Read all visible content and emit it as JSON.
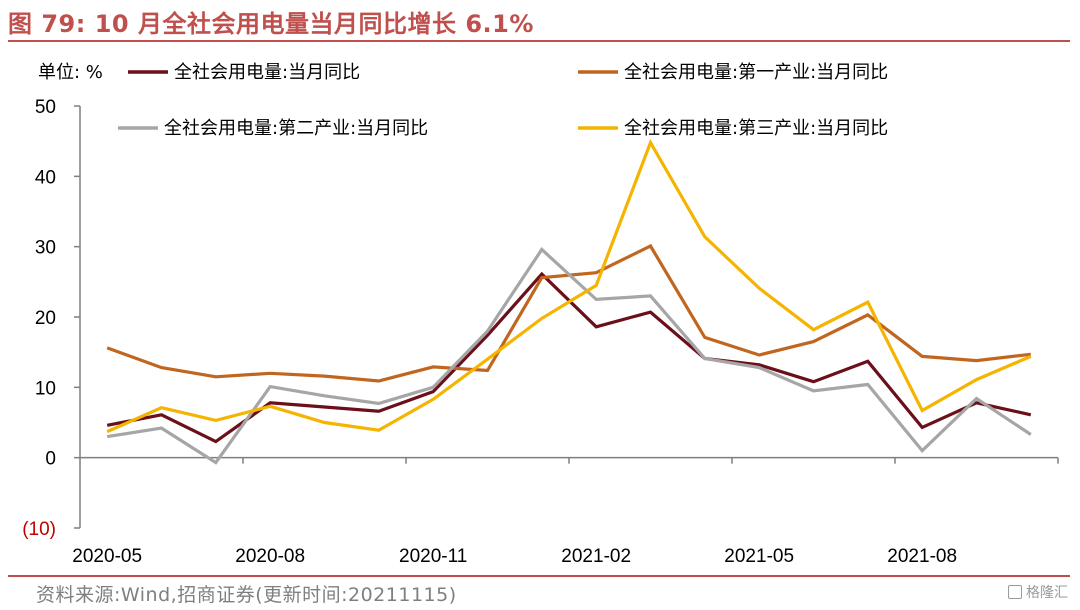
{
  "title": "图 79: 10 月全社会用电量当月同比增长 6.1%",
  "source": "资料来源:Wind,招商证券(更新时间:20211115)",
  "watermark": "格隆汇",
  "chart_data": {
    "type": "line",
    "unit_label": "单位: %",
    "x": [
      "2020-05",
      "2020-06",
      "2020-07",
      "2020-08",
      "2020-09",
      "2020-10",
      "2020-11",
      "2020-12",
      "2021-01",
      "2021-02",
      "2021-03",
      "2021-04",
      "2021-05",
      "2021-06",
      "2021-07",
      "2021-08",
      "2021-09",
      "2021-10"
    ],
    "x_tick_labels": [
      "2020-05",
      "2020-08",
      "2020-11",
      "2021-02",
      "2021-05",
      "2021-08"
    ],
    "y_ticks": [
      50,
      40,
      30,
      20,
      10,
      0,
      -10
    ],
    "y_tick_labels": [
      "50",
      "40",
      "30",
      "20",
      "10",
      "0",
      "(10)"
    ],
    "ylim": [
      -10,
      50
    ],
    "grid": false,
    "legend_position": "top",
    "series": [
      {
        "name": "全社会用电量:当月同比",
        "color": "#6b0f1a",
        "values": [
          4.6,
          6.1,
          2.3,
          7.8,
          7.2,
          6.6,
          9.4,
          17.4,
          26.1,
          18.6,
          20.7,
          14.1,
          13.2,
          10.8,
          13.7,
          4.3,
          7.8,
          6.1
        ]
      },
      {
        "name": "全社会用电量:第一产业:当月同比",
        "color": "#c1661f",
        "values": [
          15.6,
          12.8,
          11.5,
          12.0,
          11.6,
          10.9,
          12.9,
          12.4,
          25.6,
          26.3,
          30.1,
          17.1,
          14.6,
          16.5,
          20.3,
          14.4,
          13.8,
          14.7
        ]
      },
      {
        "name": "全社会用电量:第二产业:当月同比",
        "color": "#a6a6a6",
        "values": [
          3.0,
          4.2,
          -0.7,
          10.1,
          8.8,
          7.7,
          10.0,
          18.0,
          29.6,
          22.5,
          23.0,
          14.1,
          12.8,
          9.5,
          10.4,
          1.0,
          8.4,
          3.3
        ]
      },
      {
        "name": "全社会用电量:第三产业:当月同比",
        "color": "#f4b400",
        "values": [
          3.7,
          7.1,
          5.3,
          7.3,
          5.0,
          3.9,
          8.3,
          14.0,
          19.8,
          24.5,
          44.8,
          31.4,
          24.1,
          18.2,
          22.1,
          6.7,
          11.1,
          14.4
        ]
      }
    ]
  }
}
